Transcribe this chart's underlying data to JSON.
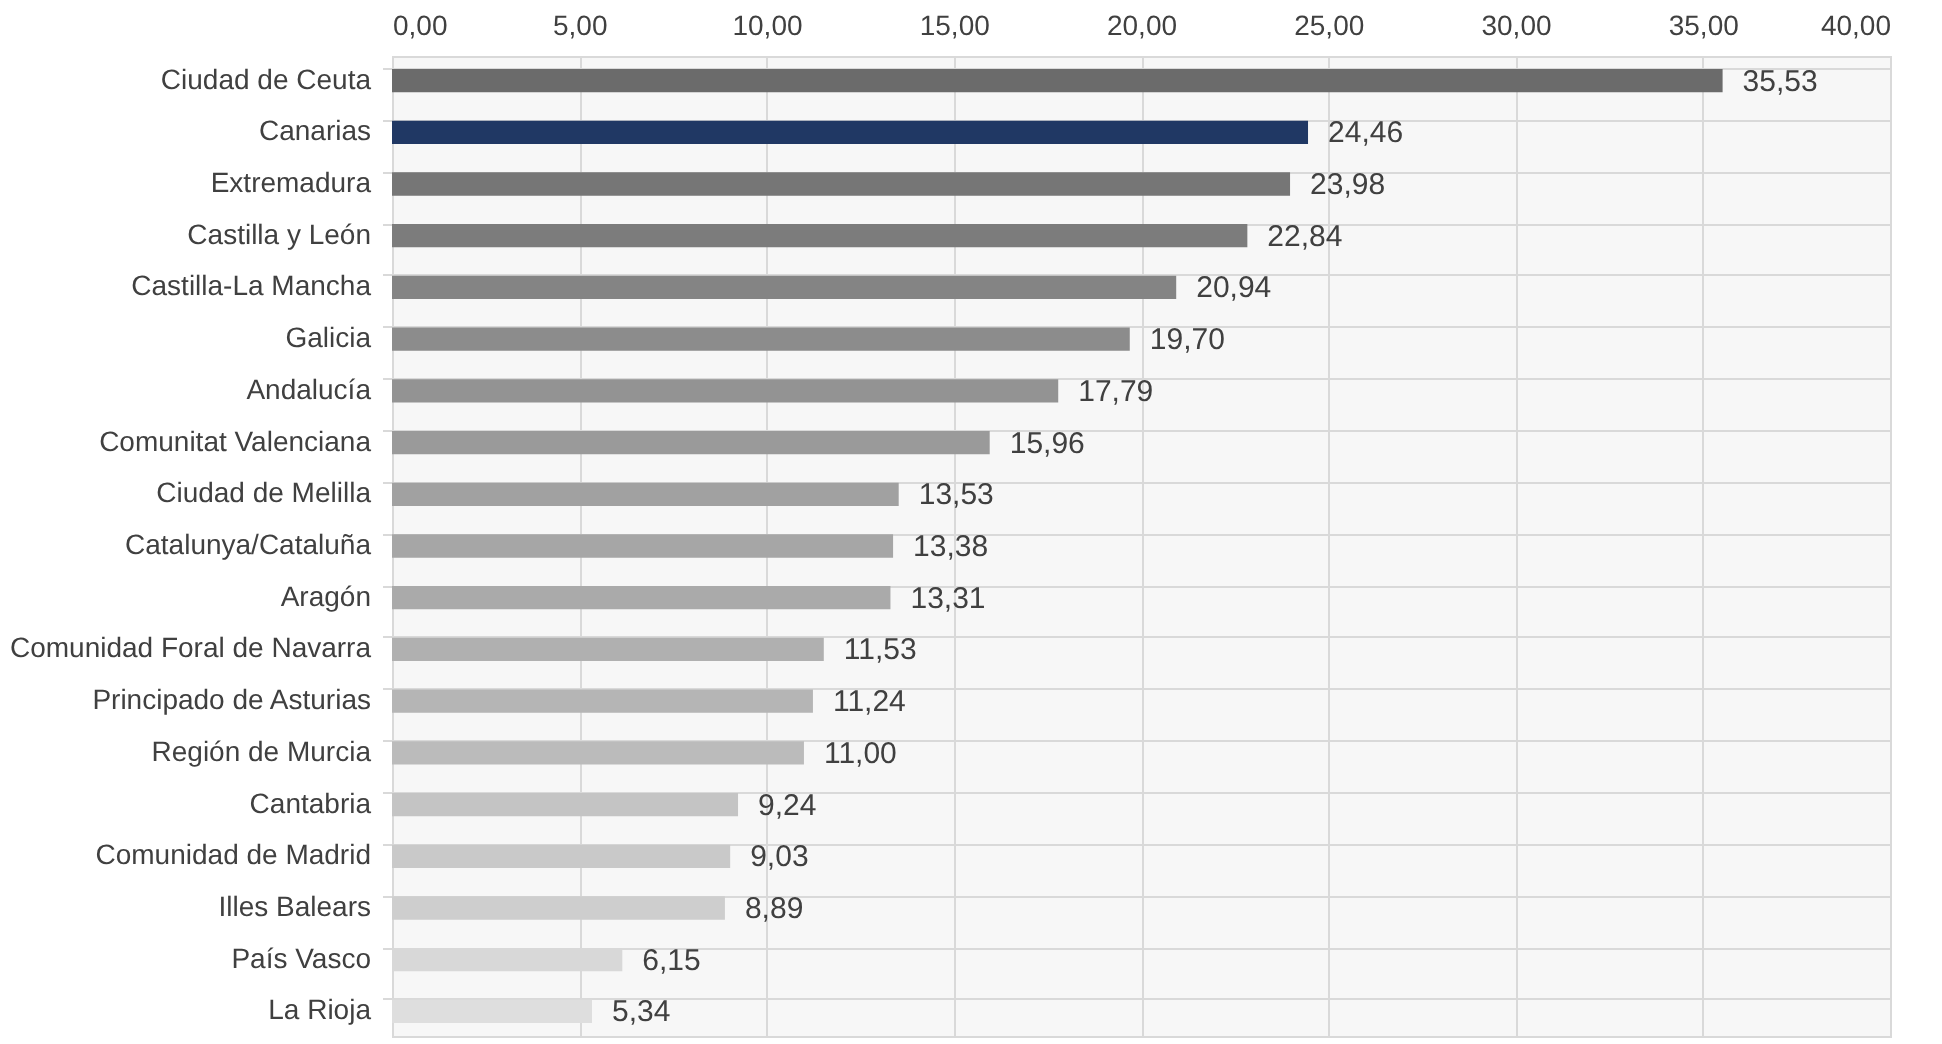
{
  "chart_data": {
    "type": "bar",
    "orientation": "horizontal",
    "categories": [
      "Ciudad de Ceuta",
      "Canarias",
      "Extremadura",
      "Castilla y León",
      "Castilla-La Mancha",
      "Galicia",
      "Andalucía",
      "Comunitat Valenciana",
      "Ciudad de Melilla",
      "Catalunya/Cataluña",
      "Aragón",
      "Comunidad Foral de Navarra",
      "Principado de Asturias",
      "Región de Murcia",
      "Cantabria",
      "Comunidad de Madrid",
      "Illes Balears",
      "País Vasco",
      "La Rioja"
    ],
    "values": [
      35.53,
      24.46,
      23.98,
      22.84,
      20.94,
      19.7,
      17.79,
      15.96,
      13.53,
      13.38,
      13.31,
      11.53,
      11.24,
      11.0,
      9.24,
      9.03,
      8.89,
      6.15,
      5.34
    ],
    "value_labels": [
      "35,53",
      "24,46",
      "23,98",
      "22,84",
      "20,94",
      "19,70",
      "17,79",
      "15,96",
      "13,53",
      "13,38",
      "13,31",
      "11,53",
      "11,24",
      "11,00",
      "9,24",
      "9,03",
      "8,89",
      "6,15",
      "5,34"
    ],
    "colors": [
      "#6b6b6b",
      "#203864",
      "#767676",
      "#7c7c7c",
      "#848484",
      "#8c8c8c",
      "#939393",
      "#9a9a9a",
      "#a1a1a1",
      "#a6a6a6",
      "#aaaaaa",
      "#b0b0b0",
      "#b5b5b5",
      "#bbbbbb",
      "#c4c4c4",
      "#c9c9c9",
      "#cecece",
      "#d8d8d8",
      "#dedede"
    ],
    "xlim": [
      0,
      40
    ],
    "xticks": [
      {
        "value": 0,
        "label": "0,00"
      },
      {
        "value": 5,
        "label": "5,00"
      },
      {
        "value": 10,
        "label": "10,00"
      },
      {
        "value": 15,
        "label": "15,00"
      },
      {
        "value": 20,
        "label": "20,00"
      },
      {
        "value": 25,
        "label": "25,00"
      },
      {
        "value": 30,
        "label": "30,00"
      },
      {
        "value": 35,
        "label": "35,00"
      },
      {
        "value": 40,
        "label": "40,00"
      }
    ],
    "grid": true
  }
}
